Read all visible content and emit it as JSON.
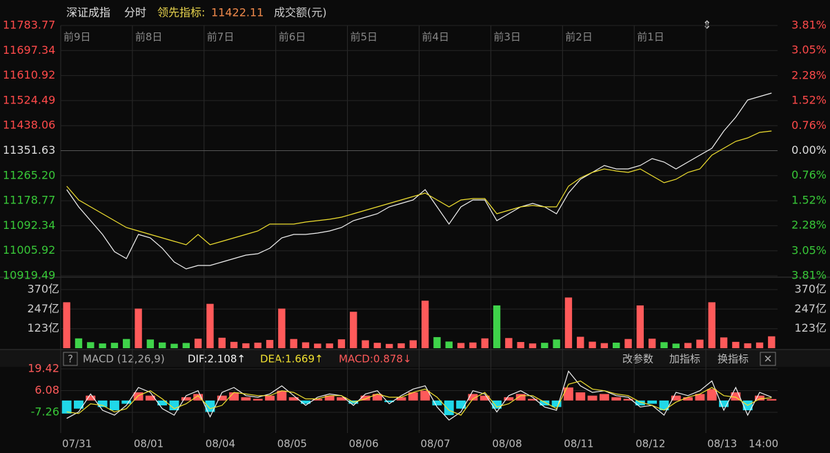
{
  "header": {
    "index_name": "深证成指",
    "mode": "分时",
    "leading_label": "领先指标:",
    "leading_value": 11422.11,
    "volume_label": "成交额(元)"
  },
  "macd_toolbar": {
    "help": "?",
    "name": "MACD (12,26,9)",
    "dif": "DIF:2.108↑",
    "dea": "DEA:1.669↑",
    "macd": "MACD:0.878↓",
    "buttons": [
      "改参数",
      "加指标",
      "换指标"
    ],
    "close": "✕"
  },
  "dates": [
    "07/31",
    "08/01",
    "08/04",
    "08/05",
    "08/06",
    "08/07",
    "08/08",
    "08/11",
    "08/12",
    "08/13"
  ],
  "day_labels": [
    "前9日",
    "前8日",
    "前7日",
    "前6日",
    "前5日",
    "前4日",
    "前3日",
    "前2日",
    "前1日"
  ],
  "time_label": "14:00",
  "chart_data": [
    {
      "type": "line",
      "ylim": [
        10919.49,
        11783.77
      ],
      "yticks": [
        10919.49,
        11005.92,
        11092.34,
        11178.77,
        {
          "value": 11265.2,
          "label": "11265.20"
        },
        11351.63,
        11438.06,
        11524.49,
        11610.92,
        11697.34,
        11783.77
      ],
      "y2lim": [
        -3.81,
        3.81
      ],
      "y2ticks": [
        {
          "value": -3.81,
          "label": "3.81%"
        },
        {
          "value": -3.05,
          "label": "3.05%"
        },
        {
          "value": -2.28,
          "label": "2.28%"
        },
        {
          "value": -1.52,
          "label": "1.52%"
        },
        {
          "value": -0.76,
          "label": "0.76%"
        },
        {
          "value": 0,
          "label": "0.00%"
        },
        {
          "value": 0.76,
          "label": "0.76%"
        },
        {
          "value": 1.52,
          "label": "1.52%"
        },
        {
          "value": 2.28,
          "label": "2.28%"
        },
        {
          "value": 3.05,
          "label": "3.05%"
        },
        {
          "value": 3.81,
          "label": "3.81%"
        }
      ],
      "up_color": "#ff4a4a",
      "down_color": "#38c838",
      "base_color": "#dddddd",
      "series": [
        {
          "color": "#f2f2f2",
          "values": [
            11217.1,
            11157.6,
            11110.0,
            11062.4,
            11002.8,
            10979.0,
            11062.4,
            11050.5,
            11014.7,
            10967.1,
            10943.3,
            10955.2,
            10955.2,
            10967.1,
            10979.0,
            10990.9,
            10995.7,
            11014.7,
            11050.5,
            11062.4,
            11062.4,
            11067.1,
            11074.3,
            11086.2,
            11110.0,
            11121.9,
            11133.8,
            11157.6,
            11169.5,
            11181.4,
            11217.1,
            11157.6,
            11098.1,
            11157.6,
            11181.4,
            11181.4,
            11110.0,
            11133.8,
            11157.6,
            11169.5,
            11157.6,
            11133.8,
            11205.2,
            11252.8,
            11276.7,
            11300.5,
            11288.6,
            11288.6,
            11300.5,
            11324.3,
            11312.4,
            11288.6,
            11312.4,
            11336.2,
            11360.0,
            11419.5,
            11467.1,
            11526.7,
            11538.6,
            11550.5
          ]
        },
        {
          "color": "#f0e030",
          "values": [
            11229.0,
            11181.4,
            11157.6,
            11133.8,
            11110.0,
            11086.2,
            11074.3,
            11062.4,
            11050.5,
            11038.6,
            11026.6,
            11062.4,
            11026.6,
            11038.6,
            11050.5,
            11062.4,
            11074.3,
            11098.1,
            11098.1,
            11098.1,
            11105.2,
            11110.0,
            11114.7,
            11121.9,
            11133.8,
            11145.7,
            11157.6,
            11169.5,
            11181.4,
            11193.3,
            11205.2,
            11181.4,
            11157.6,
            11181.4,
            11186.2,
            11186.2,
            11133.8,
            11145.7,
            11157.6,
            11162.4,
            11157.6,
            11157.6,
            11229.0,
            11257.6,
            11276.7,
            11288.6,
            11281.4,
            11276.7,
            11288.6,
            11264.7,
            11240.9,
            11252.8,
            11276.7,
            11288.6,
            11336.2,
            11360.0,
            11383.8,
            11395.7,
            11414.7,
            11419.5
          ]
        }
      ]
    },
    {
      "type": "bar",
      "ylim": [
        0,
        370
      ],
      "yticks": [
        {
          "value": 123,
          "label": "123亿"
        },
        {
          "value": 247,
          "label": "247亿"
        },
        {
          "value": 370,
          "label": "370亿"
        }
      ],
      "up_color": "#ff5a5a",
      "down_color": "#3fd34a",
      "values": [
        290,
        62,
        38,
        30,
        34,
        58,
        250,
        55,
        36,
        28,
        33,
        60,
        280,
        66,
        40,
        31,
        35,
        52,
        250,
        58,
        37,
        29,
        30,
        56,
        230,
        50,
        34,
        27,
        31,
        50,
        300,
        70,
        42,
        33,
        36,
        62,
        270,
        64,
        39,
        30,
        34,
        55,
        320,
        72,
        41,
        32,
        35,
        58,
        270,
        60,
        38,
        29,
        33,
        54,
        290,
        68,
        40,
        31,
        36,
        75
      ]
    },
    {
      "type": "macd",
      "ylim": [
        -18.69,
        21.54
      ],
      "yticks": [
        -7.26,
        6.08,
        19.42
      ],
      "up_color": "#ff5a5a",
      "down_color": "#20d8e8",
      "values": [
        -8,
        -5,
        3,
        -4,
        -6,
        -2,
        5,
        3,
        -3,
        -6,
        2,
        4,
        -7,
        3,
        5,
        2,
        1,
        3,
        6,
        2,
        -2,
        1,
        3,
        2,
        -2,
        3,
        4,
        -1,
        2,
        5,
        6,
        -3,
        -9,
        -5,
        4,
        3,
        -5,
        2,
        4,
        1,
        -3,
        -4,
        8,
        5,
        3,
        4,
        2,
        1,
        -3,
        -2,
        -6,
        3,
        2,
        4,
        7,
        -4,
        5,
        -6,
        3,
        0.878
      ],
      "series": [
        {
          "color": "#f2f2f2",
          "values": [
            -11,
            -7,
            4,
            -6,
            -9,
            -3,
            8,
            5,
            -5,
            -9,
            3,
            6,
            -10,
            5,
            8,
            3,
            2,
            4,
            9,
            3,
            -3,
            2,
            4,
            3,
            -3,
            4,
            6,
            -2,
            3,
            7,
            9,
            -4,
            -12,
            -7,
            6,
            4,
            -7,
            3,
            6,
            2,
            -4,
            -6,
            18,
            9,
            5,
            6,
            3,
            2,
            -4,
            -3,
            -9,
            5,
            3,
            6,
            12,
            -6,
            8,
            -9,
            5,
            2.108
          ]
        },
        {
          "color": "#f0e030",
          "values": [
            -7,
            -8,
            -2,
            -3,
            -7,
            -5,
            3,
            6,
            1,
            -5,
            -2,
            3,
            -5,
            -3,
            5,
            4,
            3,
            3,
            6,
            5,
            1,
            1,
            3,
            3,
            -1,
            1,
            4,
            2,
            2,
            5,
            7,
            2,
            -6,
            -9,
            1,
            5,
            -4,
            -2,
            3,
            3,
            -1,
            -5,
            10,
            12,
            7,
            6,
            4,
            3,
            -1,
            -3,
            -6,
            -1,
            2,
            4,
            8,
            3,
            2,
            -3,
            1,
            1.669
          ]
        }
      ]
    }
  ]
}
